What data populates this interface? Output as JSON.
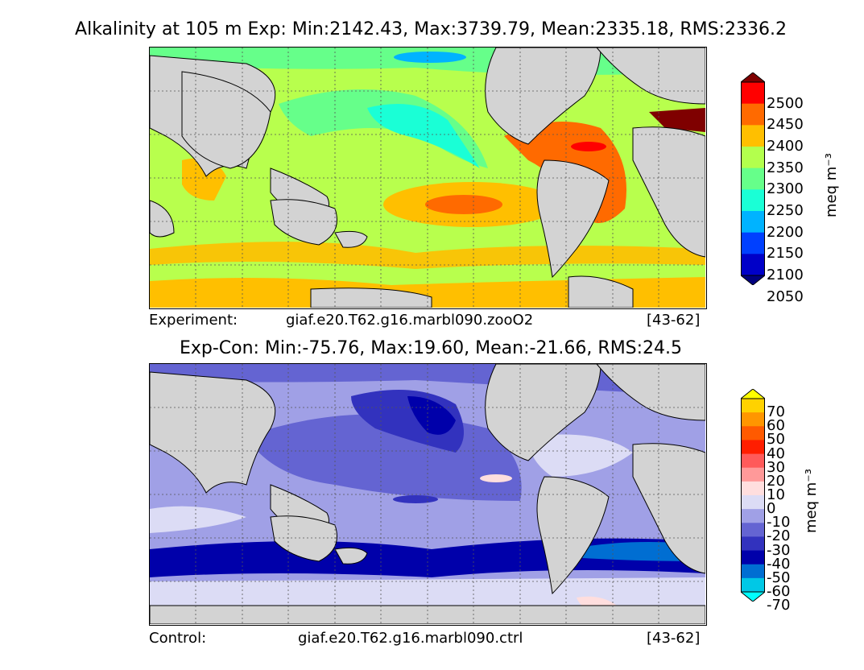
{
  "top_panel": {
    "title": "Alkalinity at 105 m Exp: Min:2142.43, Max:3739.79, Mean:2335.18, RMS:2336.2",
    "caption_label": "Experiment:",
    "caption_case": "giaf.e20.T62.g16.marbl090.zooO2",
    "caption_years": "[43-62]",
    "colorbar": {
      "ticks": [
        "2500",
        "2450",
        "2400",
        "2350",
        "2300",
        "2250",
        "2200",
        "2150",
        "2100",
        "2050"
      ],
      "colors": [
        "#7f0000",
        "#ff0000",
        "#ff6a00",
        "#ffbf00",
        "#b3ff4d",
        "#66ff8a",
        "#1affd6",
        "#00b3ff",
        "#0040ff",
        "#0000c8",
        "#00007f"
      ],
      "unit": "meq m⁻³"
    }
  },
  "bottom_panel": {
    "title": "Exp-Con: Min:-75.76, Max:19.60, Mean:-21.66, RMS:24.5",
    "caption_label": "Control:",
    "caption_case": "giaf.e20.T62.g16.marbl090.ctrl",
    "caption_years": "[43-62]",
    "colorbar": {
      "ticks": [
        "70",
        "60",
        "50",
        "40",
        "30",
        "20",
        "10",
        "0",
        "-10",
        "-20",
        "-30",
        "-40",
        "-50",
        "-60",
        "-70"
      ],
      "colors": [
        "#ffff00",
        "#ffd200",
        "#ff9600",
        "#ff5a00",
        "#ff1e00",
        "#ff5a5a",
        "#ff9999",
        "#ffdede",
        "#dcdcf5",
        "#a0a0e6",
        "#6464d2",
        "#3232be",
        "#0000aa",
        "#006ed2",
        "#00c8e6",
        "#00ffff"
      ],
      "unit": "meq m⁻³"
    }
  }
}
